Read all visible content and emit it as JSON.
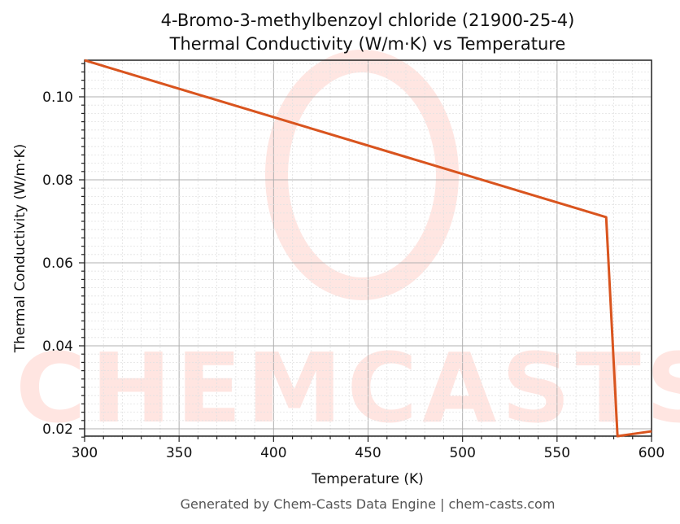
{
  "chart_data": {
    "type": "line",
    "title": "4-Bromo-3-methylbenzoyl chloride (21900-25-4)",
    "subtitle": "Thermal Conductivity (W/m·K) vs Temperature",
    "xlabel": "Temperature (K)",
    "ylabel": "Thermal Conductivity (W/m·K)",
    "xlim": [
      300,
      600
    ],
    "ylim": [
      0.018,
      0.109
    ],
    "xticks": [
      "300",
      "350",
      "400",
      "450",
      "500",
      "550",
      "600"
    ],
    "yticks": [
      "0.02",
      "0.04",
      "0.06",
      "0.08",
      "0.10"
    ],
    "grid": true,
    "series": [
      {
        "name": "Thermal Conductivity",
        "color": "#d9541e",
        "x": [
          300,
          576,
          582,
          600
        ],
        "y": [
          0.1088,
          0.071,
          0.0182,
          0.0194
        ]
      }
    ]
  },
  "watermark": "CHEMCASTS",
  "footer": "Generated by Chem-Casts Data Engine | chem-casts.com"
}
